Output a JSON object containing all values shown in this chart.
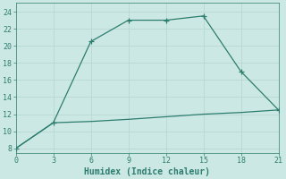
{
  "xlabel": "Humidex (Indice chaleur)",
  "x": [
    0,
    3,
    6,
    9,
    12,
    15,
    18,
    21
  ],
  "line1_y": [
    8,
    11,
    20.5,
    23,
    23,
    23.5,
    17,
    12.5
  ],
  "line2_y": [
    8,
    11,
    11.15,
    11.4,
    11.7,
    12.0,
    12.2,
    12.5
  ],
  "line_color": "#2d7d6e",
  "bg_color": "#cce8e4",
  "grid_color": "#b8d8d4",
  "xlim": [
    0,
    21
  ],
  "ylim": [
    7.5,
    25
  ],
  "xticks": [
    0,
    3,
    6,
    9,
    12,
    15,
    18,
    21
  ],
  "yticks": [
    8,
    10,
    12,
    14,
    16,
    18,
    20,
    22,
    24
  ],
  "xlabel_fontsize": 7,
  "tick_fontsize": 6,
  "marker_size": 2.5,
  "line_width": 0.9
}
